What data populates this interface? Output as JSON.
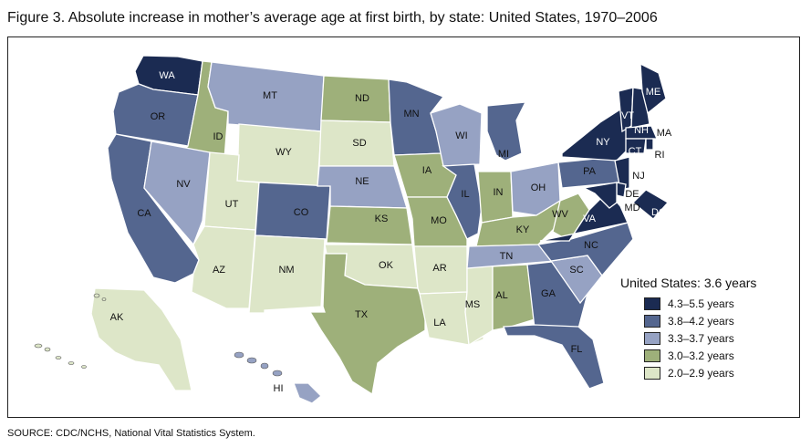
{
  "title": "Figure 3. Absolute increase in mother’s average age at first birth, by state: United States, 1970–2006",
  "source": "SOURCE: CDC/NCHS, National Vital Statistics System.",
  "legend": {
    "title": "United States: 3.6 years",
    "classes": [
      {
        "label": "4.3–5.5 years",
        "color": "#1b2b52"
      },
      {
        "label": "3.8–4.2 years",
        "color": "#54668f"
      },
      {
        "label": "3.3–3.7 years",
        "color": "#96a2c3"
      },
      {
        "label": "3.0–3.2 years",
        "color": "#9eb07a"
      },
      {
        "label": "2.0–2.9 years",
        "color": "#dde6c8"
      }
    ]
  },
  "states": [
    {
      "abbr": "WA",
      "class": 0
    },
    {
      "abbr": "OR",
      "class": 1
    },
    {
      "abbr": "CA",
      "class": 1
    },
    {
      "abbr": "ID",
      "class": 3
    },
    {
      "abbr": "NV",
      "class": 2
    },
    {
      "abbr": "MT",
      "class": 2
    },
    {
      "abbr": "WY",
      "class": 4
    },
    {
      "abbr": "UT",
      "class": 4
    },
    {
      "abbr": "AZ",
      "class": 4
    },
    {
      "abbr": "CO",
      "class": 1
    },
    {
      "abbr": "NM",
      "class": 4
    },
    {
      "abbr": "ND",
      "class": 3
    },
    {
      "abbr": "SD",
      "class": 4
    },
    {
      "abbr": "NE",
      "class": 2
    },
    {
      "abbr": "KS",
      "class": 3
    },
    {
      "abbr": "OK",
      "class": 4
    },
    {
      "abbr": "TX",
      "class": 3
    },
    {
      "abbr": "MN",
      "class": 1
    },
    {
      "abbr": "IA",
      "class": 3
    },
    {
      "abbr": "MO",
      "class": 3
    },
    {
      "abbr": "AR",
      "class": 4
    },
    {
      "abbr": "LA",
      "class": 4
    },
    {
      "abbr": "WI",
      "class": 2
    },
    {
      "abbr": "IL",
      "class": 1
    },
    {
      "abbr": "MS",
      "class": 4
    },
    {
      "abbr": "MI",
      "class": 1
    },
    {
      "abbr": "IN",
      "class": 3
    },
    {
      "abbr": "KY",
      "class": 3
    },
    {
      "abbr": "TN",
      "class": 2
    },
    {
      "abbr": "AL",
      "class": 3
    },
    {
      "abbr": "OH",
      "class": 2
    },
    {
      "abbr": "GA",
      "class": 1
    },
    {
      "abbr": "FL",
      "class": 1
    },
    {
      "abbr": "SC",
      "class": 2
    },
    {
      "abbr": "NC",
      "class": 1
    },
    {
      "abbr": "WV",
      "class": 3
    },
    {
      "abbr": "VA",
      "class": 0
    },
    {
      "abbr": "PA",
      "class": 1
    },
    {
      "abbr": "NY",
      "class": 0
    },
    {
      "abbr": "VT",
      "class": 0
    },
    {
      "abbr": "NH",
      "class": 0
    },
    {
      "abbr": "ME",
      "class": 0
    },
    {
      "abbr": "MA",
      "class": 0
    },
    {
      "abbr": "RI",
      "class": 0
    },
    {
      "abbr": "CT",
      "class": 0
    },
    {
      "abbr": "NJ",
      "class": 0
    },
    {
      "abbr": "DE",
      "class": 0
    },
    {
      "abbr": "MD",
      "class": 0
    },
    {
      "abbr": "DC",
      "class": 0
    },
    {
      "abbr": "AK",
      "class": 4
    },
    {
      "abbr": "HI",
      "class": 2
    }
  ]
}
